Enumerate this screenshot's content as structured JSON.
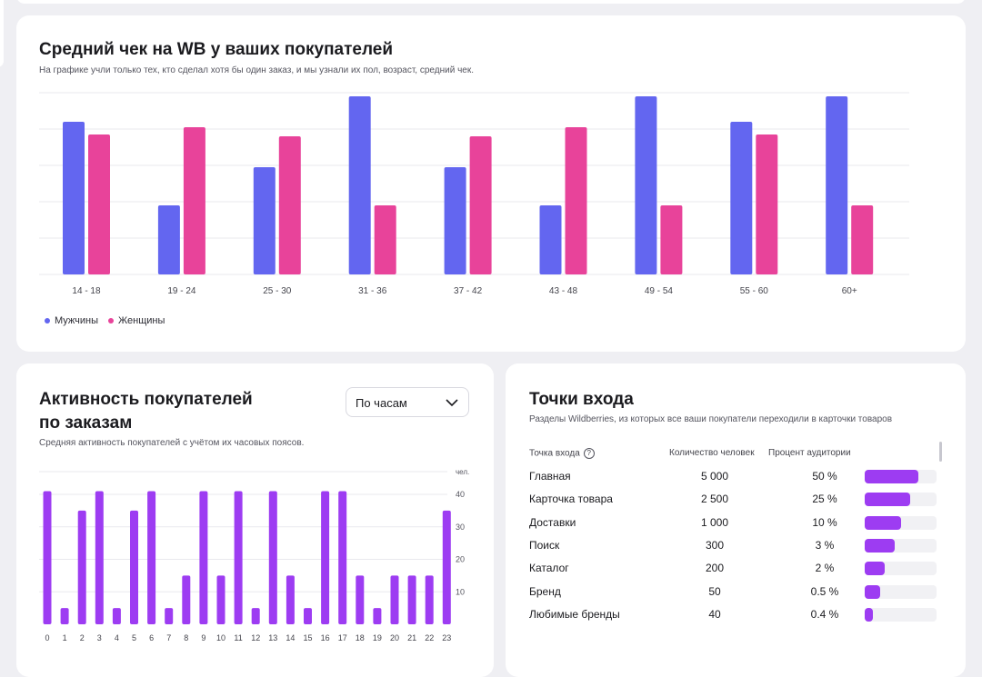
{
  "colors": {
    "men": "#6366f0",
    "women": "#e8439a",
    "activity": "#9d3cf2",
    "grid": "#e9e9ee"
  },
  "avg_check": {
    "title": "Средний чек на WB у ваших покупателей",
    "subtitle": "На графике учли только тех, кто сделал хотя бы один заказ, и мы узнали их пол, возраст, средний чек.",
    "legend": [
      {
        "label": "Мужчины"
      },
      {
        "label": "Женщины"
      }
    ]
  },
  "activity": {
    "title_line1": "Активность покупателей",
    "title_line2": "по заказам",
    "subtitle": "Средняя активность покупателей с учётом их часовых поясов.",
    "select": {
      "value": "По часам",
      "icon": "chevron-down-icon"
    }
  },
  "entry_points": {
    "title": "Точки входа",
    "subtitle": "Разделы Wildberries, из которых все ваши покупатели переходили в карточки товаров",
    "columns": [
      "Точка входа",
      "Количество человек",
      "Процент аудитории"
    ],
    "help_icon": "question-icon",
    "help_glyph": "?",
    "rows": [
      {
        "name": "Главная",
        "count": "5 000",
        "percent": "50 %",
        "fill": 0.75
      },
      {
        "name": "Карточка товара",
        "count": "2 500",
        "percent": "25 %",
        "fill": 0.63
      },
      {
        "name": "Доставки",
        "count": "1 000",
        "percent": "10 %",
        "fill": 0.51
      },
      {
        "name": "Поиск",
        "count": "300",
        "percent": "3 %",
        "fill": 0.42
      },
      {
        "name": "Каталог",
        "count": "200",
        "percent": "2 %",
        "fill": 0.28
      },
      {
        "name": "Бренд",
        "count": "50",
        "percent": "0.5 %",
        "fill": 0.22
      },
      {
        "name": "Любимые бренды",
        "count": "40",
        "percent": "0.4 %",
        "fill": 0.11
      }
    ]
  },
  "chart_data": [
    {
      "type": "bar",
      "categories": [
        "14 - 18",
        "19 - 24",
        "25 - 30",
        "31 - 36",
        "37 - 42",
        "43 - 48",
        "49 - 54",
        "55 - 60",
        "60+"
      ],
      "series": [
        {
          "name": "Мужчины",
          "values": [
            84,
            38,
            59,
            98,
            59,
            38,
            98,
            84,
            98
          ]
        },
        {
          "name": "Женщины",
          "values": [
            77,
            81,
            76,
            38,
            76,
            81,
            38,
            77,
            38
          ]
        }
      ],
      "ylim": [
        0,
        100
      ],
      "grid": true,
      "legend": "bottom-left"
    },
    {
      "type": "bar",
      "categories": [
        "0",
        "1",
        "2",
        "3",
        "4",
        "5",
        "6",
        "7",
        "8",
        "9",
        "10",
        "11",
        "12",
        "13",
        "14",
        "15",
        "16",
        "17",
        "18",
        "19",
        "20",
        "21",
        "22",
        "23"
      ],
      "values": [
        41,
        5,
        35,
        41,
        5,
        35,
        41,
        5,
        15,
        41,
        15,
        41,
        5,
        41,
        15,
        5,
        41,
        41,
        15,
        5,
        15,
        15,
        15,
        35
      ],
      "ylabel": "чел.",
      "yticks": [
        "40",
        "30",
        "20",
        "10"
      ],
      "ylim": [
        0,
        47
      ],
      "grid": true
    }
  ]
}
